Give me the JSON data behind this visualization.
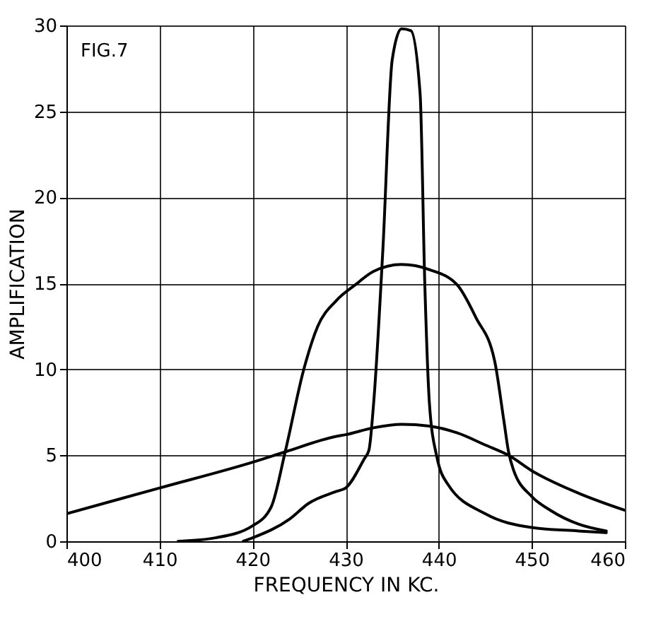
{
  "chart_data": {
    "type": "line",
    "xlabel": "FREQUENCY IN KC.",
    "ylabel": "AMPLIFICATION",
    "annotations": [
      "FIG.7"
    ],
    "xlim": [
      400,
      460
    ],
    "xticks": [
      400,
      410,
      420,
      430,
      440,
      450,
      460
    ],
    "ylim": [
      0,
      30
    ],
    "yticks": [
      0,
      5,
      10,
      15,
      20,
      25,
      30
    ],
    "grid": true,
    "legend": false,
    "marker": "none",
    "line_style": "solid",
    "series": [
      {
        "color": "#000000",
        "x": [
          400,
          410,
          420,
          423.5,
          429,
          430,
          433,
          436,
          439,
          442,
          445,
          447.5,
          450,
          455,
          460
        ],
        "values": [
          1.6,
          3.1,
          4.6,
          5.2,
          6.1,
          6.2,
          6.6,
          6.8,
          6.7,
          6.3,
          5.6,
          5.0,
          4.1,
          2.8,
          1.8
        ]
      },
      {
        "color": "#000000",
        "x": [
          412,
          416,
          420,
          422,
          423.5,
          425.5,
          427,
          429,
          431,
          433,
          436,
          439,
          442,
          444,
          446,
          447,
          447.5,
          448,
          450,
          452,
          455,
          458
        ],
        "values": [
          0,
          0.2,
          0.9,
          2,
          5.2,
          10,
          12.5,
          14,
          14.9,
          15.7,
          16.1,
          15.8,
          14.9,
          13,
          10.5,
          7,
          5.2,
          4.2,
          2.6,
          1.8,
          1.0,
          0.6
        ]
      },
      {
        "color": "#000000",
        "x": [
          419,
          420,
          424,
          426,
          429,
          430,
          432,
          432.5,
          433,
          434,
          435,
          436,
          437,
          438,
          438.5,
          439,
          439.8,
          441,
          445,
          450,
          455,
          458
        ],
        "values": [
          0,
          0.2,
          1.3,
          2.2,
          2.9,
          3.1,
          4.8,
          5.3,
          8,
          17,
          28,
          29.8,
          29.7,
          26,
          15,
          8,
          4.9,
          3.3,
          1.6,
          0.8,
          0.6,
          0.5
        ]
      }
    ]
  }
}
